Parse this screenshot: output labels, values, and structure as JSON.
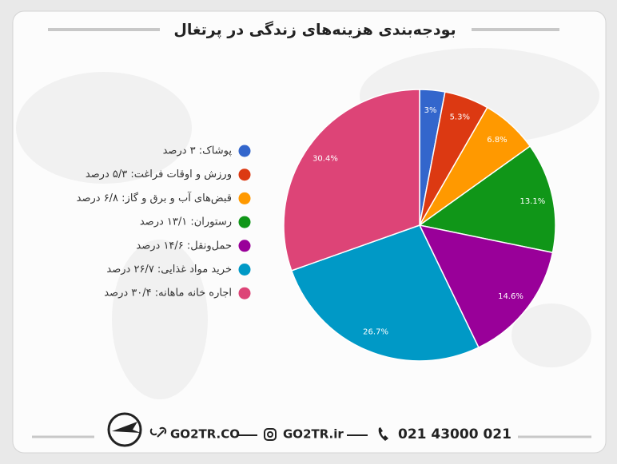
{
  "chart_data": {
    "type": "pie",
    "title": "بودجه‌بندی هزینه‌های زندگی در پرتغال",
    "categories": [
      "پوشاک: ۳ درصد",
      "ورزش و اوقات فراغت: ۵/۳ درصد",
      "قبض‌های آب و برق و گاز: ۶/۸ درصد",
      "رستوران: ۱۳/۱ درصد",
      "حمل‌ونقل: ۱۴/۶ درصد",
      "خرید مواد غذایی: ۲۶/۷ درصد",
      "اجاره خانه ماهانه: ۳۰/۴ درصد"
    ],
    "values": [
      3,
      5.3,
      6.8,
      13.1,
      14.6,
      26.7,
      30.4
    ],
    "value_labels": [
      "3%",
      "5.3%",
      "6.8%",
      "13.1%",
      "14.6%",
      "26.7%",
      "30.4%"
    ],
    "colors": [
      "#3366cc",
      "#dc3912",
      "#ff9900",
      "#109618",
      "#990099",
      "#0099c6",
      "#dd4477"
    ],
    "legend": "left"
  },
  "footer": {
    "website": "GO2TR.CO",
    "instagram": "GO2TR.ir",
    "phone": "021 43000 021"
  }
}
